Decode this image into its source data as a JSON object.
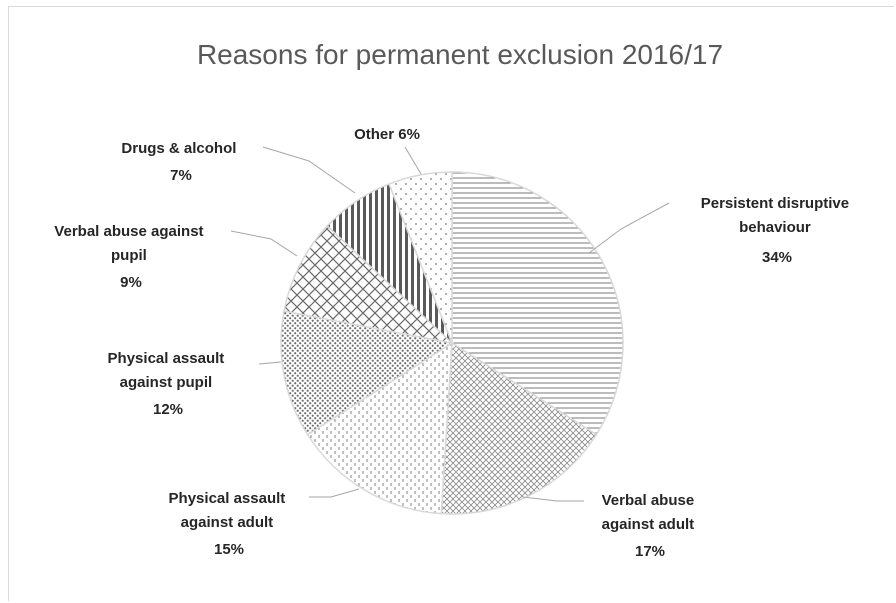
{
  "chart_data": {
    "type": "pie",
    "title": "Reasons for permanent exclusion 2016/17",
    "legend": "none",
    "slices": [
      {
        "label": "Persistent disruptive behaviour",
        "value": 34,
        "pct_label": "34%",
        "pattern": "horizontal-lines"
      },
      {
        "label": "Verbal abuse against adult",
        "value": 17,
        "pct_label": "17%",
        "pattern": "crosshatch-fine"
      },
      {
        "label": "Physical assault against adult",
        "value": 15,
        "pct_label": "15%",
        "pattern": "vertical-dashes"
      },
      {
        "label": "Physical assault against pupil",
        "value": 12,
        "pct_label": "12%",
        "pattern": "dense-dots"
      },
      {
        "label": "Verbal abuse against pupil",
        "value": 9,
        "pct_label": "9%",
        "pattern": "diagonal-crosshatch"
      },
      {
        "label": "Drugs & alcohol",
        "value": 7,
        "pct_label": "7%",
        "pattern": "vertical-stripes"
      },
      {
        "label": "Other",
        "value": 6,
        "pct_label": "6%",
        "pattern": "sparse-dots"
      }
    ]
  },
  "labels": {
    "persistent": [
      "Persistent disruptive",
      "behaviour",
      "34%"
    ],
    "verbal_adult": [
      "Verbal abuse",
      "against adult",
      "17%"
    ],
    "physical_adult": [
      "Physical  assault",
      "against  adult",
      "15%"
    ],
    "physical_pupil": [
      "Physical  assault",
      "against  pupil",
      "12%"
    ],
    "verbal_pupil": [
      "Verbal abuse against",
      "pupil",
      "9%"
    ],
    "drugs": [
      "Drugs & alcohol",
      "7%"
    ],
    "other": [
      "Other 6%"
    ]
  }
}
